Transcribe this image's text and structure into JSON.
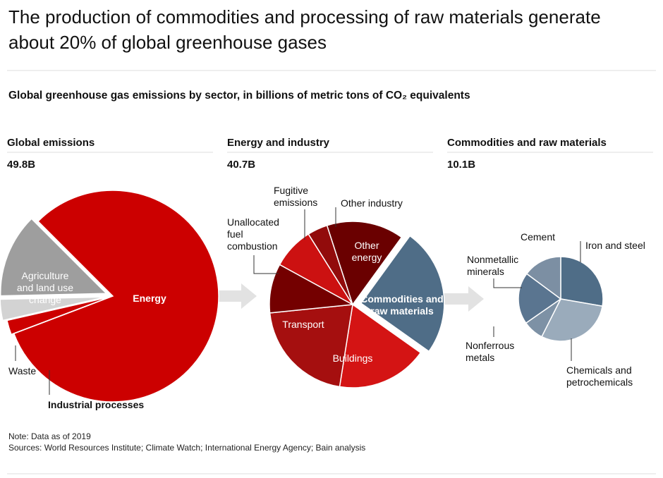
{
  "header": {
    "title": "The production of commodities and processing of raw materials generate about 20% of global greenhouse gases",
    "subtitle": "Global greenhouse gas emissions by sector, in billions of metric tons of CO₂ equivalents"
  },
  "chart_data": [
    {
      "type": "pie",
      "title": "Global emissions",
      "total": "49.8B",
      "categories": [
        "Energy",
        "Industrial processes",
        "Waste",
        "Agriculture and land use change"
      ],
      "values": [
        40.7,
        1.1,
        1.6,
        6.4
      ],
      "colors": [
        "#cc0000",
        "#cc0000",
        "#d3d3d3",
        "#9e9e9e"
      ]
    },
    {
      "type": "pie",
      "title": "Energy and industry",
      "total": "40.7B",
      "categories": [
        "Commodities and raw materials",
        "Buildings",
        "Transport",
        "Unallocated fuel combustion",
        "Fugitive emissions",
        "Other industry",
        "Other energy"
      ],
      "values": [
        10.1,
        7.2,
        8.5,
        3.9,
        3.3,
        1.6,
        6.1
      ],
      "colors": [
        "#4f6d87",
        "#d41414",
        "#a50f0f",
        "#740000",
        "#cc1111",
        "#920b0b",
        "#6a0000"
      ]
    },
    {
      "type": "pie",
      "title": "Commodities and raw materials",
      "total": "10.1B",
      "categories": [
        "Iron and steel",
        "Chemicals and petrochemicals",
        "Nonferrous metals",
        "Nonmetallic minerals",
        "Cement"
      ],
      "values": [
        2.8,
        3.0,
        0.8,
        2.0,
        1.5
      ],
      "colors": [
        "#4f6d87",
        "#9aabbb",
        "#7d91a5",
        "#5a7590",
        "#7c8fa3"
      ]
    }
  ],
  "footer": {
    "note": "Note: Data as of 2019",
    "sources": "Sources: World Resources Institute; Climate Watch; International Energy Agency; Bain analysis"
  }
}
